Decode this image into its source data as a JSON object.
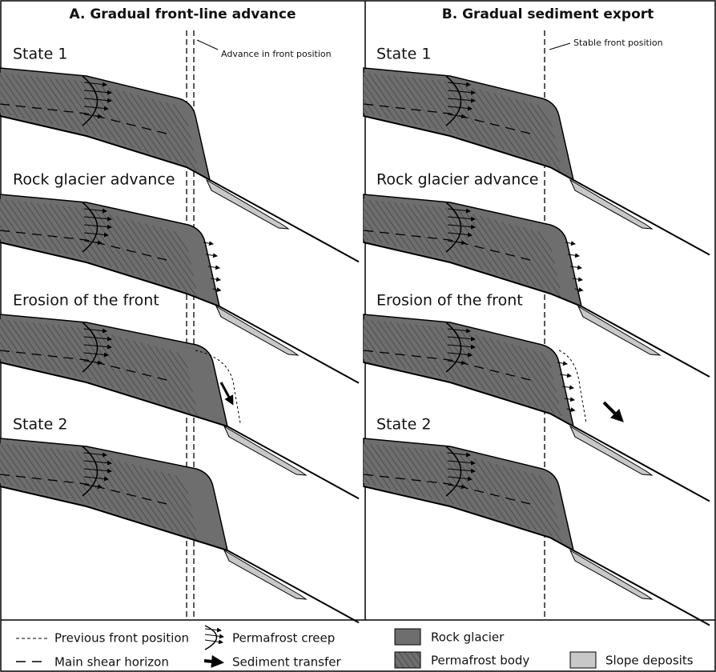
{
  "panels": [
    {
      "title": "A. Gradual front-line advance",
      "annotation": "Advance in front position",
      "states": [
        "State 1",
        "Rock glacier advance",
        "Erosion of the front",
        "State 2"
      ]
    },
    {
      "title": "B. Gradual sediment export",
      "annotation": "Stable front position",
      "states": [
        "State 1",
        "Rock glacier advance",
        "Erosion of the front",
        "State 2"
      ]
    }
  ],
  "legend": {
    "previous_front": "Previous front position",
    "shear_horizon": "Main shear horizon",
    "creep": "Permafrost creep",
    "transfer": "Sediment transfer",
    "rock_glacier": "Rock glacier",
    "permafrost_body": "Permafrost body",
    "slope_deposits": "Slope deposits"
  }
}
